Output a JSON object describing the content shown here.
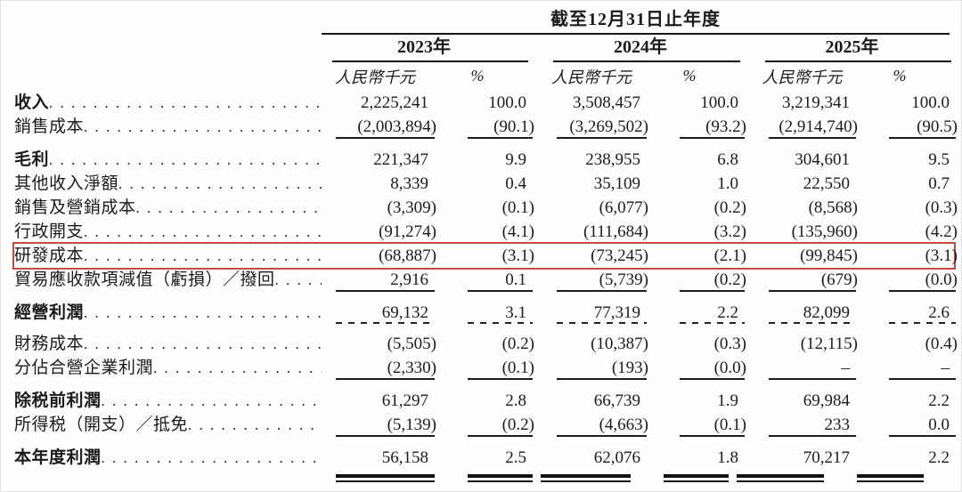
{
  "table": {
    "period_header": "截至12月31日止年度",
    "years": [
      "2023年",
      "2024年",
      "2025年"
    ],
    "columns": {
      "amount_label": "人民幣千元",
      "percent_label": "%"
    },
    "highlight_color": "#cb4a40",
    "rows": [
      {
        "label": "收入",
        "bold": true,
        "values": [
          "2,225,241",
          "100.0",
          "3,508,457",
          "100.0",
          "3,219,341",
          "100.0"
        ]
      },
      {
        "label": "銷售成本",
        "bold": false,
        "values": [
          "(2,003,894)",
          "(90.1)",
          "(3,269,502)",
          "(93.2)",
          "(2,914,740)",
          "(90.5)"
        ],
        "rule": "solid"
      },
      {
        "label": "毛利",
        "bold": true,
        "gap_above": true,
        "values": [
          "221,347",
          "9.9",
          "238,955",
          "6.8",
          "304,601",
          "9.5"
        ]
      },
      {
        "label": "其他收入淨額",
        "bold": false,
        "values": [
          "8,339",
          "0.4",
          "35,109",
          "1.0",
          "22,550",
          "0.7"
        ]
      },
      {
        "label": "銷售及營銷成本",
        "bold": false,
        "values": [
          "(3,309)",
          "(0.1)",
          "(6,077)",
          "(0.2)",
          "(8,568)",
          "(0.3)"
        ]
      },
      {
        "label": "行政開支",
        "bold": false,
        "values": [
          "(91,274)",
          "(4.1)",
          "(111,684)",
          "(3.2)",
          "(135,960)",
          "(4.2)"
        ]
      },
      {
        "label": "研發成本",
        "bold": false,
        "highlight": true,
        "values": [
          "(68,887)",
          "(3.1)",
          "(73,245)",
          "(2.1)",
          "(99,845)",
          "(3.1)"
        ]
      },
      {
        "label": "貿易應收款項減值（虧損）／撥回",
        "bold": false,
        "values": [
          "2,916",
          "0.1",
          "(5,739)",
          "(0.2)",
          "(679)",
          "(0.0)"
        ],
        "rule": "solid"
      },
      {
        "label": "經營利潤",
        "bold": true,
        "gap_above": true,
        "values": [
          "69,132",
          "3.1",
          "77,319",
          "2.2",
          "82,099",
          "2.6"
        ],
        "rule": "dashed"
      },
      {
        "label": "財務成本",
        "bold": false,
        "gap_above_sm": true,
        "values": [
          "(5,505)",
          "(0.2)",
          "(10,387)",
          "(0.3)",
          "(12,115)",
          "(0.4)"
        ]
      },
      {
        "label": "分佔合營企業利潤",
        "bold": false,
        "values": [
          "(2,330)",
          "(0.1)",
          "(193)",
          "(0.0)",
          "–",
          "–"
        ],
        "rule": "solid"
      },
      {
        "label": "除税前利潤",
        "bold": true,
        "gap_above": true,
        "values": [
          "61,297",
          "2.8",
          "66,739",
          "1.9",
          "69,984",
          "2.2"
        ]
      },
      {
        "label": "所得税（開支）／抵免",
        "bold": false,
        "values": [
          "(5,139)",
          "(0.2)",
          "(4,663)",
          "(0.1)",
          "233",
          "0.0"
        ],
        "rule": "solid"
      },
      {
        "label": "本年度利潤",
        "bold": true,
        "gap_above": true,
        "values": [
          "56,158",
          "2.5",
          "62,076",
          "1.8",
          "70,217",
          "2.2"
        ],
        "rule": "double"
      }
    ]
  }
}
